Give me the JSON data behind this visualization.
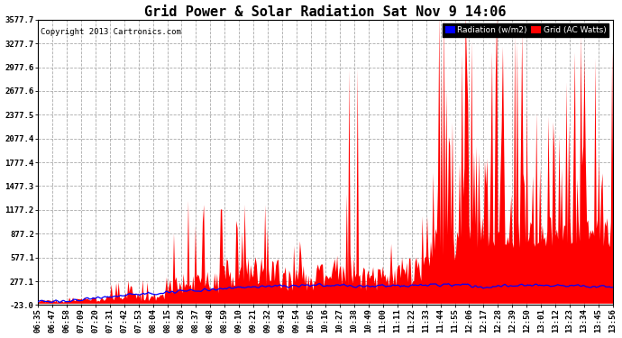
{
  "title": "Grid Power & Solar Radiation Sat Nov 9 14:06",
  "copyright": "Copyright 2013 Cartronics.com",
  "legend_radiation": "Radiation (w/m2)",
  "legend_grid": "Grid (AC Watts)",
  "yticks": [
    -23.0,
    277.1,
    577.1,
    877.2,
    1177.2,
    1477.3,
    1777.4,
    2077.4,
    2377.5,
    2677.6,
    2977.6,
    3277.7,
    3577.7
  ],
  "ymin": -23.0,
  "ymax": 3577.7,
  "background_color": "#ffffff",
  "grid_color": "#aaaaaa",
  "bar_color": "#ff0000",
  "line_color": "#0000ff",
  "title_fontsize": 11,
  "tick_fontsize": 6.5,
  "x_tick_labels": [
    "06:35",
    "06:47",
    "06:58",
    "07:09",
    "07:20",
    "07:31",
    "07:42",
    "07:53",
    "08:04",
    "08:15",
    "08:26",
    "08:37",
    "08:48",
    "08:59",
    "09:10",
    "09:21",
    "09:32",
    "09:43",
    "09:54",
    "10:05",
    "10:16",
    "10:27",
    "10:38",
    "10:49",
    "11:00",
    "11:11",
    "11:22",
    "11:33",
    "11:44",
    "11:55",
    "12:06",
    "12:17",
    "12:28",
    "12:39",
    "12:50",
    "13:01",
    "13:12",
    "13:23",
    "13:34",
    "13:45",
    "13:56"
  ],
  "num_points": 480
}
